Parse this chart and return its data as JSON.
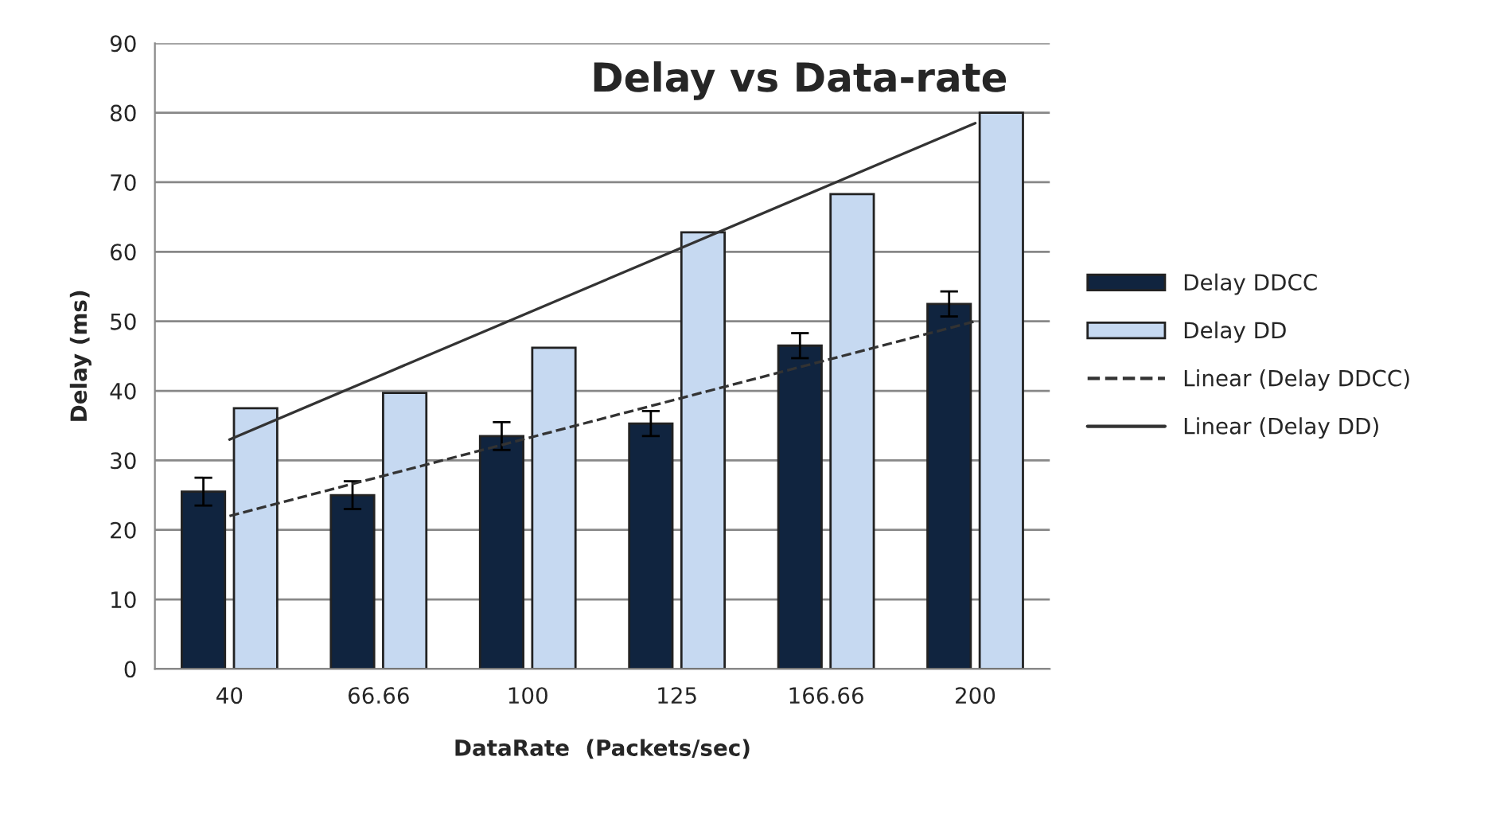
{
  "chart_data": {
    "type": "bar",
    "title": "Delay vs Data-rate",
    "xlabel": "DataRate  (Packets/sec)",
    "ylabel": "Delay (ms)",
    "categories": [
      "40",
      "66.66",
      "100",
      "125",
      "166.66",
      "200"
    ],
    "series": [
      {
        "name": "Delay DDCC",
        "color": "#10243f",
        "values": [
          25.5,
          25,
          33.5,
          35.3,
          46.5,
          52.5
        ],
        "errors": [
          2,
          2,
          2,
          1.8,
          1.8,
          1.8
        ]
      },
      {
        "name": "Delay DD",
        "color": "#c6d9f1",
        "values": [
          37.5,
          39.7,
          46.2,
          62.8,
          68.3,
          80
        ]
      },
      {
        "name": "Linear (Delay DDCC)",
        "type": "line",
        "line_style": "dashed",
        "color": "#333333",
        "values": [
          22,
          27.6,
          33.2,
          38.8,
          44.4,
          50
        ]
      },
      {
        "name": "Linear (Delay DD)",
        "type": "line",
        "line_style": "solid",
        "color": "#333333",
        "values": [
          33,
          42.1,
          51.2,
          60.3,
          69.4,
          78.5
        ]
      }
    ],
    "ylim": [
      0,
      90
    ],
    "yticks": [
      0,
      10,
      20,
      30,
      40,
      50,
      60,
      70,
      80,
      90
    ],
    "grid": "y",
    "legend": "right"
  }
}
